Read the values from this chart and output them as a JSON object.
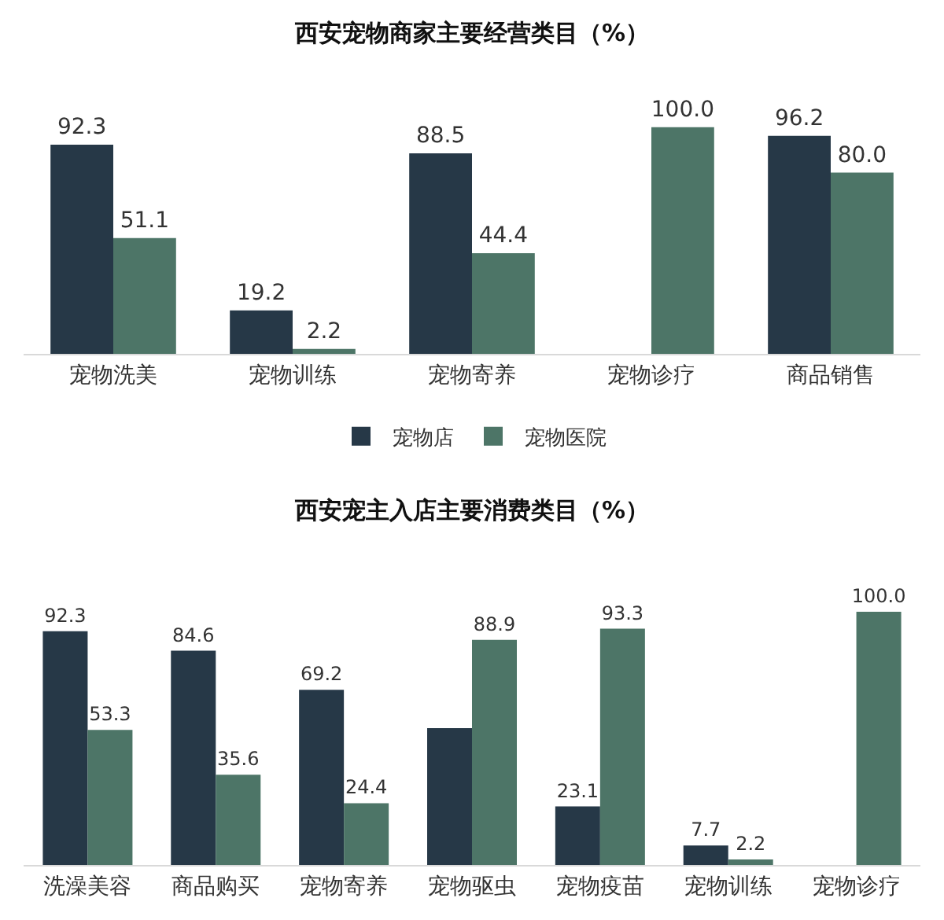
{
  "chart_data": [
    {
      "type": "bar",
      "title": "西安宠物商家主要经营类目（%）",
      "categories": [
        "宠物洗美",
        "宠物训练",
        "宠物寄养",
        "宠物诊疗",
        "商品销售"
      ],
      "series": [
        {
          "name": "宠物店",
          "color": "#263847",
          "values": [
            92.3,
            19.2,
            88.5,
            null,
            96.2
          ],
          "value_labels": [
            "92.3",
            "19.2",
            "88.5",
            null,
            "96.2"
          ]
        },
        {
          "name": "宠物医院",
          "color": "#4d7567",
          "values": [
            51.1,
            2.2,
            44.4,
            100.0,
            80.0
          ],
          "value_labels": [
            "51.1",
            "2.2",
            "44.4",
            "100.0",
            "80.0"
          ]
        }
      ],
      "legend": "bottom",
      "grid": false
    },
    {
      "type": "bar",
      "title": "西安宠主入店主要消费类目（%）",
      "categories": [
        "洗澡美容",
        "商品购买",
        "宠物寄养",
        "宠物驱虫",
        "宠物疫苗",
        "宠物训练",
        "宠物诊疗"
      ],
      "series": [
        {
          "color": "#263847",
          "values": [
            92.3,
            84.6,
            69.2,
            54,
            23.1,
            7.7,
            null
          ],
          "value_labels": [
            "92.3",
            "84.6",
            "69.2",
            null,
            "23.1",
            "7.7",
            null
          ]
        },
        {
          "color": "#4d7567",
          "values": [
            53.3,
            35.6,
            24.4,
            88.9,
            93.3,
            2.2,
            100.0
          ],
          "value_labels": [
            "53.3",
            "35.6",
            "24.4",
            "88.9",
            "93.3",
            "2.2",
            "100.0"
          ]
        }
      ],
      "legend": false,
      "grid": false
    }
  ]
}
